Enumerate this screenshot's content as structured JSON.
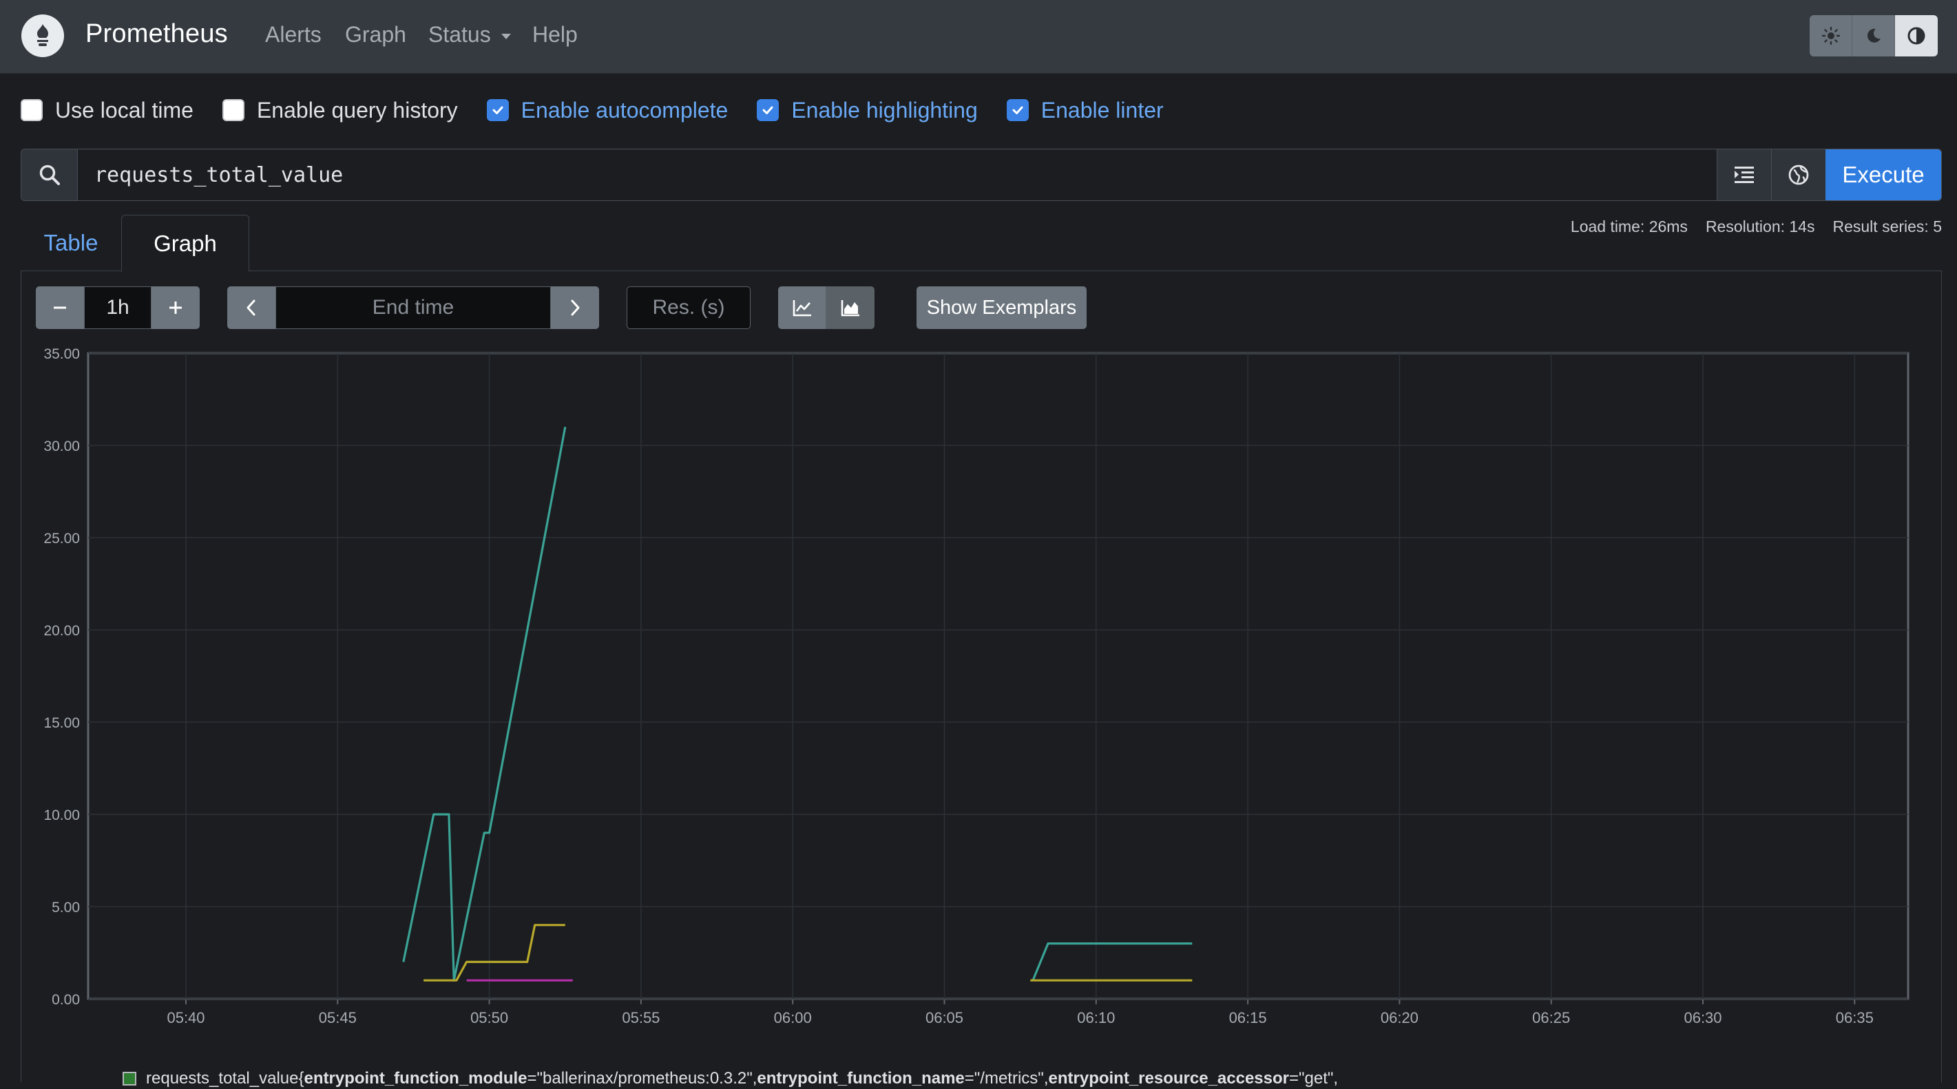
{
  "navbar": {
    "brand": "Prometheus",
    "links": {
      "alerts": "Alerts",
      "graph": "Graph",
      "status": "Status",
      "help": "Help"
    },
    "theme_icons": [
      "sun-icon",
      "moon-icon",
      "half-circle-icon"
    ]
  },
  "options": {
    "local_time": {
      "label": "Use local time",
      "checked": false
    },
    "query_history": {
      "label": "Enable query history",
      "checked": false
    },
    "autocomplete": {
      "label": "Enable autocomplete",
      "checked": true
    },
    "highlighting": {
      "label": "Enable highlighting",
      "checked": true
    },
    "linter": {
      "label": "Enable linter",
      "checked": true
    }
  },
  "query": {
    "value": "requests_total_value",
    "execute_label": "Execute"
  },
  "tabs": {
    "table": "Table",
    "graph": "Graph",
    "active": "graph"
  },
  "stats": {
    "load_time": "Load time: 26ms",
    "resolution": "Resolution: 14s",
    "result_series": "Result series: 5"
  },
  "controls": {
    "range": "1h",
    "end_time_placeholder": "End time",
    "resolution_placeholder": "Res. (s)",
    "show_exemplars": "Show Exemplars"
  },
  "chart_data": {
    "type": "line",
    "x_ticks": [
      "05:40",
      "05:45",
      "05:50",
      "05:55",
      "06:00",
      "06:05",
      "06:10",
      "06:15",
      "06:20",
      "06:25",
      "06:30",
      "06:35"
    ],
    "y_ticks": [
      "0.00",
      "5.00",
      "10.00",
      "15.00",
      "20.00",
      "25.00",
      "30.00",
      "35.00"
    ],
    "ylim": [
      0,
      35
    ],
    "grid": true,
    "series": [
      {
        "color": "#3aa395",
        "segments": [
          [
            [
              "05:47:10",
              2
            ],
            [
              "05:48:10",
              10
            ],
            [
              "05:48:40",
              10
            ],
            [
              "05:48:50",
              1
            ],
            [
              "05:49:50",
              9
            ],
            [
              "05:50:00",
              9
            ],
            [
              "05:52:30",
              31
            ]
          ],
          [
            [
              "06:07:55",
              1
            ],
            [
              "06:08:25",
              3
            ],
            [
              "06:13:10",
              3
            ]
          ]
        ]
      },
      {
        "color": "#b8a92a",
        "segments": [
          [
            [
              "05:47:50",
              1
            ],
            [
              "05:48:55",
              1
            ],
            [
              "05:49:15",
              2
            ],
            [
              "05:51:15",
              2
            ],
            [
              "05:51:30",
              4
            ],
            [
              "05:52:30",
              4
            ]
          ],
          [
            [
              "06:07:50",
              1
            ],
            [
              "06:13:10",
              1
            ]
          ]
        ]
      },
      {
        "color": "#b52fa8",
        "segments": [
          [
            [
              "05:49:15",
              1
            ],
            [
              "05:52:45",
              1
            ]
          ]
        ]
      }
    ]
  },
  "legend": {
    "metric": "requests_total_value{",
    "k1": "entrypoint_function_module",
    "v1": "=\"ballerinax/prometheus:0.3.2\", ",
    "k2": "entrypoint_function_name",
    "v2": "=\"/metrics\", ",
    "k3": "entrypoint_resource_accessor",
    "v3": "=\"get\","
  }
}
